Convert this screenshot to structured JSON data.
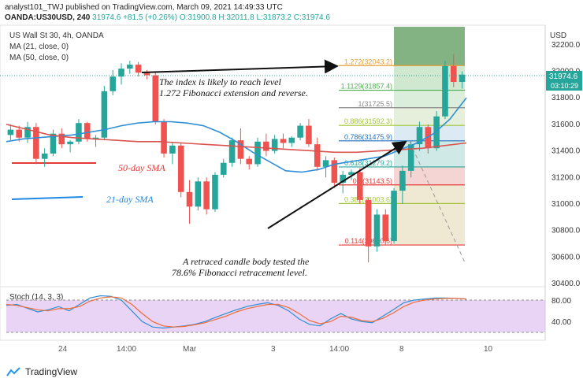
{
  "header": {
    "publisher": "analyst101_TWJ published on TradingView.com, March 09, 2021 14:49:33 UTC",
    "symbol": "OANDA:US30USD, 240",
    "last": "31974.6",
    "change": "+81.5 (+0.26%)",
    "o": "O:31900.8",
    "h": "H:32011.8",
    "l": "L:31873.2",
    "c": "C:31974.6"
  },
  "legend": {
    "title": "US Wall St 30, 4h, OANDA",
    "ma21": "MA (21, close, 0)",
    "ma50": "MA (50, close, 0)",
    "stoch": "Stoch (14, 3, 3)"
  },
  "price_axis": {
    "currency": "USD",
    "ticks": [
      "32200.0",
      "32000.0",
      "31800.0",
      "31600.0",
      "31400.0",
      "31200.0",
      "31000.0",
      "30800.0",
      "30600.0",
      "30400.0"
    ],
    "price_badge": "31974.6",
    "countdown": "03:10:29"
  },
  "stoch_axis": {
    "ticks": [
      "80.00",
      "40.00"
    ]
  },
  "time_axis": {
    "ticks": [
      "24",
      "14:00",
      "Mar",
      "3",
      "14:00",
      "8",
      "10"
    ]
  },
  "annotations": {
    "top1": "The index is likely to reach level",
    "top2": "1.272 Fibonacci extension and reverse.",
    "bot1": "A retraced candle body tested the",
    "bot2": "78.6% Fibonacci retracement level.",
    "sma50": "50-day SMA",
    "sma21": "21-day SMA"
  },
  "fib_levels": [
    {
      "label": "1.272(32043.2)",
      "price": 32043.2,
      "color": "#e6a23c"
    },
    {
      "label": "1.1129(31857.4)",
      "price": 31857.4,
      "color": "#4caf50"
    },
    {
      "label": "1(31725.5)",
      "price": 31725.5,
      "color": "#888888"
    },
    {
      "label": "0.886(31592.3)",
      "price": 31592.3,
      "color": "#a4c639"
    },
    {
      "label": "0.786(31475.9)",
      "price": 31475.9,
      "color": "#1f6fbf"
    },
    {
      "label": "0.618(31279.2)",
      "price": 31279.2,
      "color": "#26a69a"
    },
    {
      "label": "0.5(31143.5)",
      "price": 31143.5,
      "color": "#e53935"
    },
    {
      "label": "0.382(31003.6)",
      "price": 31003.6,
      "color": "#a4c639"
    },
    {
      "label": "0.114(30690.6)",
      "price": 30690.6,
      "color": "#e53935"
    }
  ],
  "chart_data": {
    "type": "candlestick",
    "ylim": [
      30400,
      32300
    ],
    "candles": [
      [
        31520,
        31600,
        31480,
        31560
      ],
      [
        31560,
        31590,
        31470,
        31500
      ],
      [
        31500,
        31620,
        31460,
        31580
      ],
      [
        31580,
        31610,
        31300,
        31340
      ],
      [
        31340,
        31420,
        31280,
        31380
      ],
      [
        31380,
        31560,
        31360,
        31530
      ],
      [
        31530,
        31570,
        31420,
        31450
      ],
      [
        31450,
        31480,
        31390,
        31470
      ],
      [
        31470,
        31640,
        31450,
        31610
      ],
      [
        31610,
        31620,
        31470,
        31490
      ],
      [
        31490,
        31520,
        31430,
        31500
      ],
      [
        31500,
        31890,
        31480,
        31850
      ],
      [
        31850,
        32010,
        31820,
        31960
      ],
      [
        31960,
        32060,
        31900,
        32020
      ],
      [
        32020,
        32080,
        31980,
        32050
      ],
      [
        32050,
        32070,
        31960,
        31990
      ],
      [
        31990,
        32010,
        31940,
        31970
      ],
      [
        31970,
        32000,
        31600,
        31620
      ],
      [
        31620,
        31640,
        31350,
        31380
      ],
      [
        31380,
        31460,
        31300,
        31440
      ],
      [
        31440,
        31460,
        31050,
        31090
      ],
      [
        31090,
        31180,
        30850,
        30980
      ],
      [
        30980,
        31200,
        30950,
        31170
      ],
      [
        31170,
        31200,
        30920,
        30960
      ],
      [
        30960,
        31240,
        30940,
        31220
      ],
      [
        31220,
        31340,
        31200,
        31310
      ],
      [
        31310,
        31500,
        31280,
        31480
      ],
      [
        31480,
        31570,
        31300,
        31340
      ],
      [
        31340,
        31360,
        31260,
        31300
      ],
      [
        31300,
        31500,
        31280,
        31470
      ],
      [
        31470,
        31530,
        31360,
        31400
      ],
      [
        31400,
        31520,
        31380,
        31490
      ],
      [
        31490,
        31530,
        31420,
        31460
      ],
      [
        31460,
        31510,
        31430,
        31500
      ],
      [
        31500,
        31610,
        31480,
        31590
      ],
      [
        31590,
        31640,
        31430,
        31450
      ],
      [
        31450,
        31500,
        31250,
        31280
      ],
      [
        31280,
        31360,
        31200,
        31330
      ],
      [
        31330,
        31350,
        31120,
        31160
      ],
      [
        31160,
        31250,
        31080,
        31220
      ],
      [
        31220,
        31260,
        31180,
        31240
      ],
      [
        31240,
        31270,
        31000,
        31030
      ],
      [
        31030,
        31050,
        30560,
        30680
      ],
      [
        30680,
        30960,
        30640,
        30920
      ],
      [
        30920,
        30960,
        30690,
        30720
      ],
      [
        30720,
        31120,
        30700,
        31100
      ],
      [
        31100,
        31290,
        31000,
        31250
      ],
      [
        31250,
        31480,
        31200,
        31450
      ],
      [
        31450,
        31620,
        31400,
        31580
      ],
      [
        31580,
        31600,
        31380,
        31420
      ],
      [
        31420,
        31700,
        31400,
        31660
      ],
      [
        31660,
        32080,
        31640,
        32040
      ],
      [
        32040,
        32130,
        31880,
        31920
      ],
      [
        31920,
        32000,
        31870,
        31975
      ]
    ],
    "ma21": [
      31470,
      31490,
      31500,
      31510,
      31520,
      31540,
      31560,
      31590,
      31610,
      31620,
      31620,
      31610,
      31590,
      31540,
      31470,
      31390,
      31320,
      31250,
      31240,
      31260,
      31300,
      31320,
      31340,
      31360,
      31410,
      31460,
      31530,
      31640,
      31800
    ],
    "ma50": [
      31600,
      31560,
      31520,
      31500,
      31490,
      31480,
      31470,
      31470,
      31460,
      31450,
      31440,
      31430,
      31420,
      31410,
      31400,
      31390,
      31390,
      31400,
      31410,
      31420,
      31440,
      31460
    ],
    "stoch_k": [
      70,
      72,
      65,
      58,
      62,
      68,
      60,
      72,
      84,
      88,
      87,
      80,
      60,
      40,
      30,
      28,
      30,
      32,
      35,
      40,
      48,
      55,
      62,
      68,
      72,
      75,
      70,
      60,
      45,
      35,
      32,
      45,
      55,
      45,
      40,
      38,
      50,
      62,
      75,
      80,
      82,
      84,
      84,
      83,
      82
    ],
    "stoch_d": [
      72,
      70,
      66,
      62,
      60,
      64,
      64,
      68,
      78,
      84,
      86,
      84,
      72,
      55,
      40,
      32,
      30,
      31,
      34,
      38,
      44,
      50,
      58,
      64,
      68,
      72,
      72,
      66,
      55,
      42,
      36,
      40,
      50,
      48,
      42,
      40,
      46,
      56,
      68,
      76,
      80,
      82,
      83,
      83,
      82
    ]
  }
}
